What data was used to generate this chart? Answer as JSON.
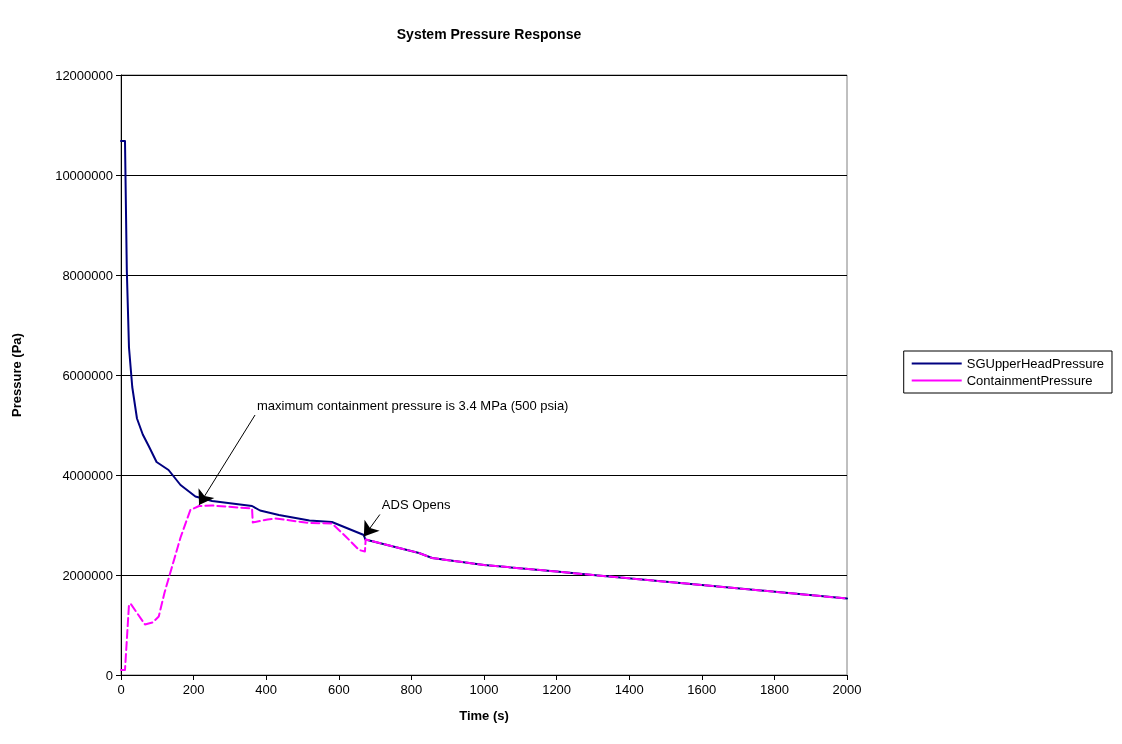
{
  "chart_data": {
    "type": "line",
    "title": "System Pressure Response",
    "xlabel": "Time (s)",
    "ylabel": "Pressure (Pa)",
    "xlim": [
      0,
      2000
    ],
    "xticks": [
      0,
      200,
      400,
      600,
      800,
      1000,
      1200,
      1400,
      1600,
      1800,
      2000
    ],
    "ylim": [
      0,
      12000000
    ],
    "yticks": [
      0,
      2000000,
      4000000,
      6000000,
      8000000,
      10000000,
      12000000
    ],
    "grid": "y",
    "legend": "right",
    "marker": "none",
    "annotations": [
      {
        "text": "maximum containment pressure is 3.4 MPa (500 psia)",
        "x": 215,
        "y": 3400000
      },
      {
        "text": "ADS Opens",
        "x": 669,
        "y": 2770000
      }
    ],
    "series": [
      {
        "name": "SGUpperHeadPressure",
        "color": "#000080",
        "line_style": "solid",
        "x": [
          0,
          11,
          16,
          22,
          31,
          44,
          60,
          77,
          98,
          131,
          164,
          205,
          251,
          361,
          383,
          435,
          519,
          581,
          669,
          673,
          821,
          857,
          1000,
          1200,
          1300,
          1600,
          2000
        ],
        "values": [
          10680000,
          10680000,
          8100000,
          6550000,
          5760000,
          5130000,
          4810000,
          4570000,
          4260000,
          4100000,
          3800000,
          3570000,
          3480000,
          3380000,
          3290000,
          3200000,
          3090000,
          3060000,
          2800000,
          2710000,
          2440000,
          2340000,
          2200000,
          2070000,
          2000000,
          1800000,
          1530000
        ]
      },
      {
        "name": "ContainmentPressure",
        "color": "#ff00ff",
        "line_style": "dashed",
        "x": [
          0,
          11,
          22,
          27,
          66,
          87,
          104,
          120,
          142,
          164,
          191,
          215,
          251,
          361,
          363,
          404,
          426,
          519,
          581,
          619,
          656,
          672,
          674,
          821,
          857,
          1000,
          1200,
          1300,
          1600,
          2000
        ],
        "values": [
          100000,
          100000,
          1410000,
          1420000,
          1010000,
          1050000,
          1170000,
          1650000,
          2200000,
          2750000,
          3300000,
          3380000,
          3390000,
          3330000,
          3050000,
          3110000,
          3130000,
          3040000,
          3030000,
          2770000,
          2500000,
          2470000,
          2710000,
          2440000,
          2340000,
          2200000,
          2070000,
          2000000,
          1800000,
          1530000
        ]
      }
    ]
  }
}
